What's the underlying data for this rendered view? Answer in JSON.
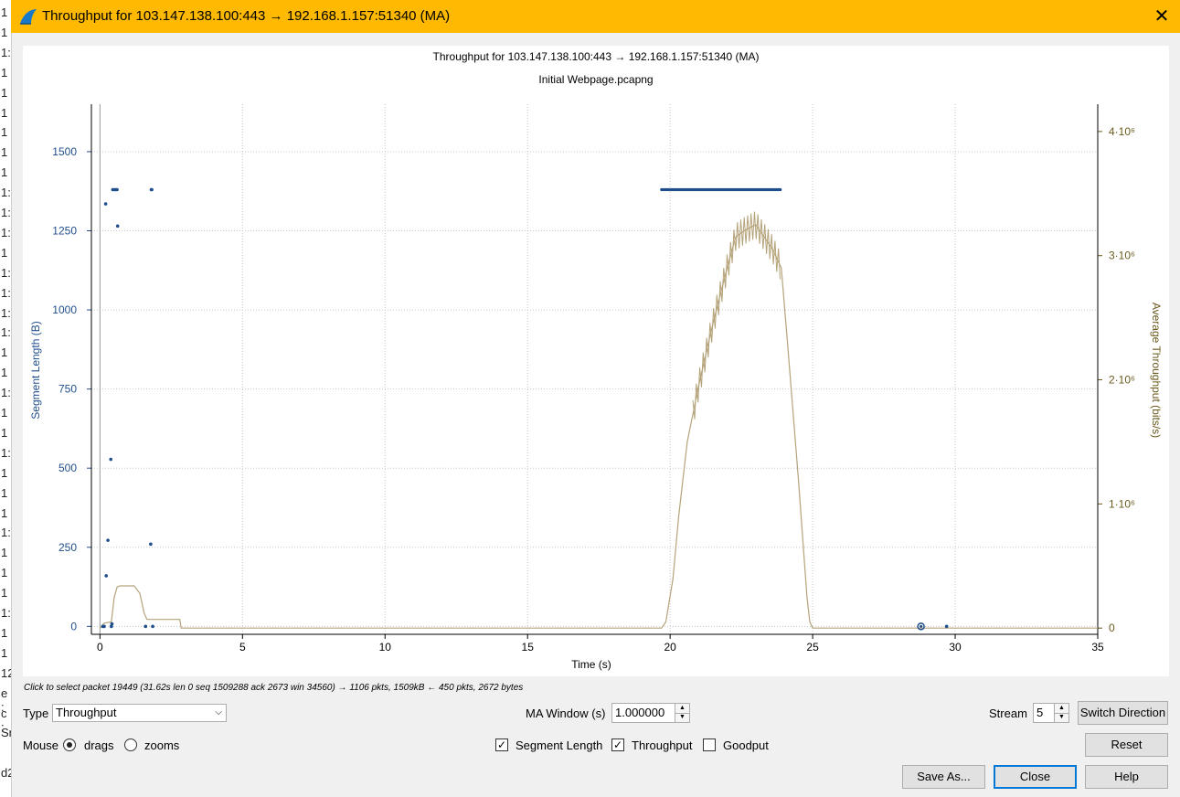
{
  "window": {
    "title": "Throughput for 103.147.138.100:443 → 192.168.1.157:51340 (MA)",
    "close_symbol": "✕"
  },
  "background_strip": [
    "1",
    "1",
    "1:",
    "1",
    "1",
    "1",
    "1",
    "1",
    "1",
    "1:",
    "1:",
    "1:",
    "1",
    "1:",
    "1:",
    "1:",
    "1:",
    "1",
    "1",
    "1:",
    "1",
    "1",
    "1:",
    "1",
    "1",
    "1",
    "1:",
    "1",
    "1",
    "1",
    "1:",
    "1",
    "1",
    "12",
    "e :",
    "c :",
    "Sr",
    "",
    "d2"
  ],
  "chart_data": {
    "type": "scatter",
    "title": "Throughput for 103.147.138.100:443 → 192.168.1.157:51340 (MA)",
    "subtitle": "Initial Webpage.pcapng",
    "xlabel": "Time (s)",
    "ylabel_left": "Segment Length (B)",
    "ylabel_right": "Average Throughput (bits/s)",
    "xlim": [
      -0.3,
      35
    ],
    "ylim_left": [
      -25,
      1650
    ],
    "ylim_right": [
      -50000,
      4220000
    ],
    "x_ticks": [
      "0",
      "5",
      "10",
      "15",
      "20",
      "25",
      "30",
      "35"
    ],
    "y_ticks_left": [
      "0",
      "250",
      "500",
      "750",
      "1000",
      "1250",
      "1500"
    ],
    "y_ticks_right": [
      "0",
      "1·10⁶",
      "2·10⁶",
      "3·10⁶",
      "4·10⁶"
    ],
    "y_ticks_right_values": [
      0,
      1000000,
      2000000,
      3000000,
      4000000
    ],
    "grid": true,
    "series": [
      {
        "name": "Segment Length",
        "color": "#1f4e8c",
        "x": [
          0.1,
          0.15,
          0.2,
          0.22,
          0.28,
          0.38,
          0.4,
          0.42,
          0.45,
          0.5,
          0.55,
          0.6,
          0.62,
          1.6,
          1.78,
          1.8,
          1.82,
          1.85,
          29.7
        ],
        "y": [
          0,
          0,
          1335,
          160,
          272,
          528,
          0,
          8,
          1380,
          1380,
          1380,
          1380,
          1265,
          0,
          260,
          1380,
          1380,
          0,
          0
        ]
      },
      {
        "name": "Throughput",
        "color": "#b5a37a",
        "x": [
          0,
          0.15,
          0.4,
          0.5,
          0.6,
          0.7,
          1.2,
          1.4,
          1.55,
          1.65,
          1.9,
          2.8,
          2.85,
          19.7,
          19.85,
          20.1,
          20.3,
          20.6,
          21,
          21.5,
          22,
          22.3,
          22.6,
          23,
          23.3,
          23.6,
          23.9,
          24.1,
          24.5,
          24.8,
          24.9,
          25,
          35
        ],
        "y": [
          0,
          40000,
          50000,
          250000,
          330000,
          340000,
          340000,
          280000,
          120000,
          70000,
          70000,
          70000,
          0,
          0,
          50000,
          400000,
          900000,
          1500000,
          1950000,
          2450000,
          2900000,
          3150000,
          3200000,
          3250000,
          3150000,
          3050000,
          2900000,
          2350000,
          1200000,
          250000,
          50000,
          0,
          0
        ]
      },
      {
        "name": "Selected packet",
        "color": "#1f4e8c",
        "x": [
          28.8
        ],
        "y": [
          0
        ]
      }
    ],
    "dense_segment_band": {
      "x_start": 19.7,
      "x_end": 23.9,
      "y": 1380
    }
  },
  "hover_text": "Click to select packet 19449 (31.62s len 0 seq 1509288 ack 2673 win 34560) → 1106 pkts, 1509kB ← 450 pkts, 2672 bytes",
  "controls": {
    "type_label": "Type",
    "type_value": "Throughput",
    "ma_window_label": "MA Window (s)",
    "ma_window_value": "1.000000",
    "stream_label": "Stream",
    "stream_value": "5",
    "switch_direction_label": "Switch Direction",
    "mouse_label": "Mouse",
    "drags_label": "drags",
    "zooms_label": "zooms",
    "segment_length_label": "Segment Length",
    "throughput_label": "Throughput",
    "goodput_label": "Goodput",
    "reset_label": "Reset",
    "save_as_label": "Save As...",
    "close_label": "Close",
    "help_label": "Help",
    "checked_symbol": "✓",
    "spin_up": "▲",
    "spin_down": "▼",
    "combo_arrow": "⌵"
  },
  "colors": {
    "titlebar": "#ffb900",
    "left_axis": "#1f4e8c",
    "right_axis": "#6b5a1e",
    "throughput_line": "#b5a37a",
    "grid": "#c8c8c8"
  }
}
